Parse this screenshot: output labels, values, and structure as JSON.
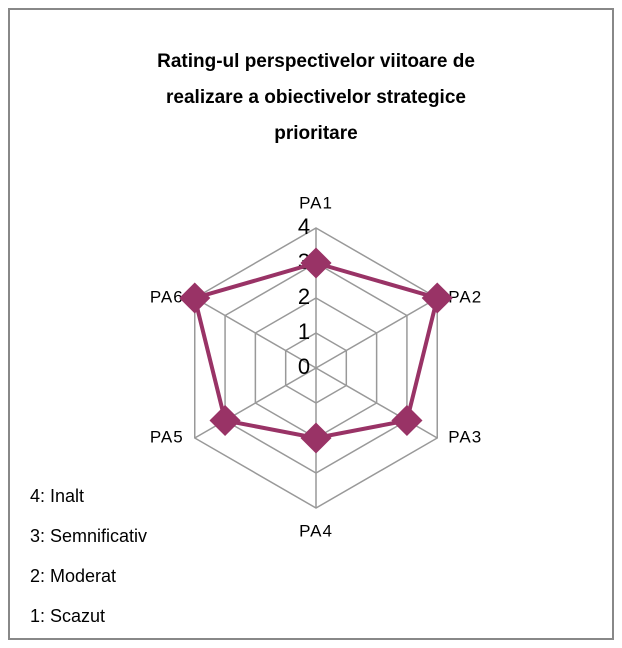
{
  "chart_data": {
    "type": "radar",
    "title_lines": [
      "Rating-ul perspectivelor viitoare de",
      "realizare a obiectivelor strategice",
      "prioritare"
    ],
    "categories": [
      "PA1",
      "PA2",
      "PA3",
      "PA4",
      "PA5",
      "PA6"
    ],
    "series": [
      {
        "color": "#993366",
        "values": [
          3,
          4,
          3,
          2,
          3,
          4
        ]
      }
    ],
    "ylim": [
      0,
      4
    ],
    "yticks": [
      0,
      1,
      2,
      3,
      4
    ],
    "grid": true,
    "notes": [
      "4: Inalt",
      "3: Semnificativ",
      "2: Moderat",
      "1: Scazut"
    ]
  }
}
